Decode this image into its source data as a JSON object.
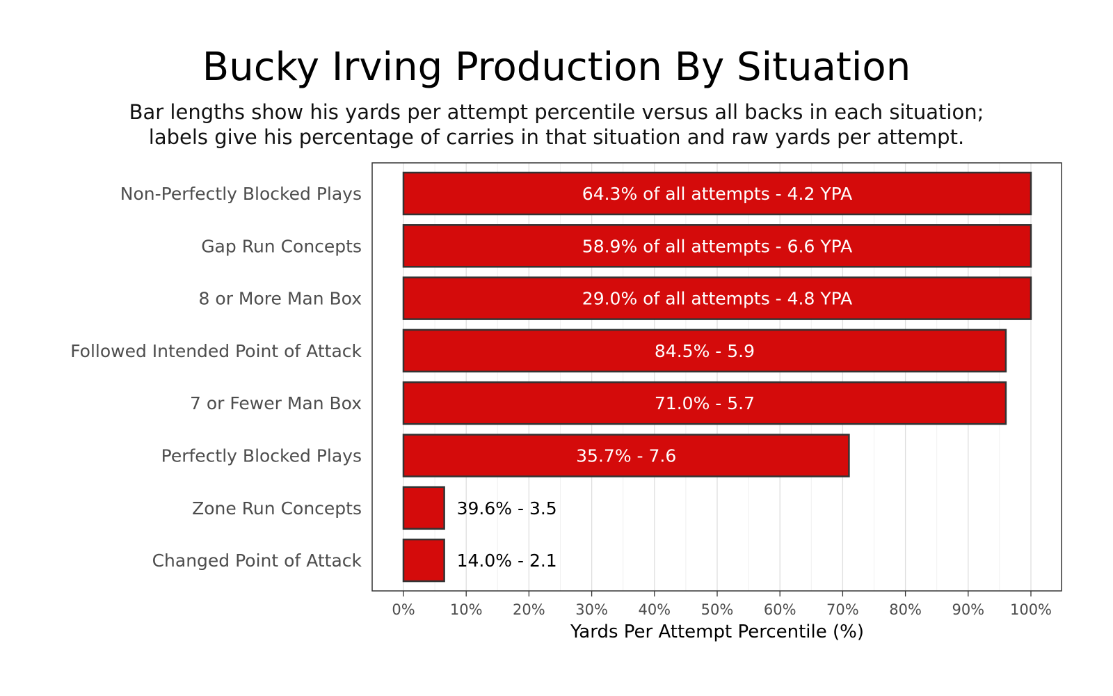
{
  "chart_data": {
    "type": "bar",
    "orientation": "horizontal",
    "title": "Bucky Irving Production By Situation",
    "subtitle": [
      "Bar lengths show his yards per attempt percentile versus all backs in each situation;",
      "labels give his percentage of carries in that situation and raw yards per attempt."
    ],
    "xlabel": "Yards Per Attempt Percentile (%)",
    "ylabel": "",
    "xlim": [
      0,
      100
    ],
    "x_ticks": [
      "0%",
      "10%",
      "20%",
      "30%",
      "40%",
      "50%",
      "60%",
      "70%",
      "80%",
      "90%",
      "100%"
    ],
    "x_tick_values": [
      0,
      10,
      20,
      30,
      40,
      50,
      60,
      70,
      80,
      90,
      100
    ],
    "grid": true,
    "bar_color": "#d40b0b",
    "bar_edge_color": "#333333",
    "categories": [
      "Non-Perfectly Blocked Plays",
      "Gap Run Concepts",
      "8 or More Man Box",
      "Followed Intended Point of Attack",
      "7 or Fewer Man Box",
      "Perfectly Blocked Plays",
      "Zone Run Concepts",
      "Changed Point of Attack"
    ],
    "values": [
      100,
      100,
      100,
      96,
      96,
      71,
      6.5,
      6.5
    ],
    "bar_labels": [
      "64.3% of all attempts - 4.2 YPA",
      "58.9% of all attempts - 6.6 YPA",
      "29.0% of all attempts - 4.8 YPA",
      "84.5% - 5.9",
      "71.0% - 5.7",
      "35.7% - 7.6",
      "39.6% - 3.5",
      "14.0% - 2.1"
    ]
  }
}
